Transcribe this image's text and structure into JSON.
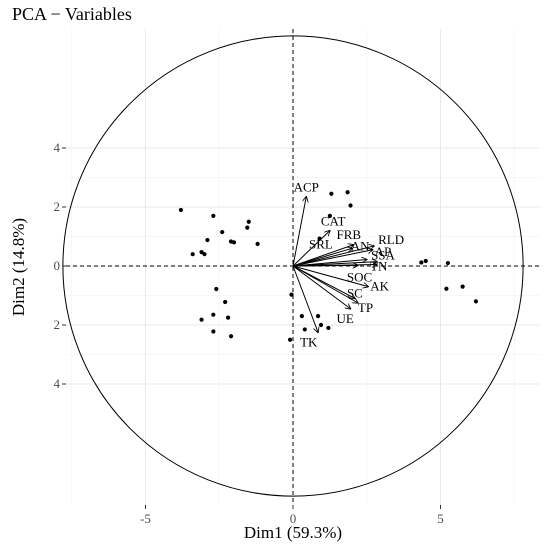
{
  "chart_data": {
    "type": "scatter",
    "title": "PCA − Variables",
    "xlabel": "Dim1 (59.3%)",
    "ylabel": "Dim2 (14.8%)",
    "xlim": [
      -7.8,
      8.2
    ],
    "ylim": [
      -4.3,
      4.3
    ],
    "xticks": [
      -5,
      0,
      5
    ],
    "yticks": [
      -4,
      -2,
      0,
      2,
      4
    ],
    "ytick_labels": [
      "4",
      "2",
      "0",
      "2",
      "4"
    ],
    "grid": true,
    "legend": "none",
    "circle": {
      "center": [
        0,
        0
      ],
      "radius": 7.8
    },
    "reference_lines": {
      "x": 0,
      "y": 0,
      "style": "dashed"
    },
    "variables": [
      {
        "name": "ACP",
        "x": 0.45,
        "y": 2.35
      },
      {
        "name": "CAT",
        "x": 1.25,
        "y": 1.2
      },
      {
        "name": "FRB",
        "x": 2.05,
        "y": 0.72
      },
      {
        "name": "RLD",
        "x": 2.75,
        "y": 0.68
      },
      {
        "name": "SRL",
        "x": 2.0,
        "y": 0.6
      },
      {
        "name": "AP",
        "x": 2.7,
        "y": 0.55
      },
      {
        "name": "AN",
        "x": 2.5,
        "y": 0.22
      },
      {
        "name": "SSA",
        "x": 2.85,
        "y": 0.15
      },
      {
        "name": "TN",
        "x": 2.85,
        "y": 0.05
      },
      {
        "name": "SOC",
        "x": 2.2,
        "y": 0.02
      },
      {
        "name": "AK",
        "x": 2.55,
        "y": -0.7
      },
      {
        "name": "SC",
        "x": 2.1,
        "y": -1.1
      },
      {
        "name": "TP",
        "x": 2.2,
        "y": -1.25
      },
      {
        "name": "UE",
        "x": 1.95,
        "y": -1.45
      },
      {
        "name": "TK",
        "x": 0.85,
        "y": -2.25
      }
    ],
    "points": [
      {
        "x": -3.8,
        "y": 1.9
      },
      {
        "x": -2.7,
        "y": 1.7
      },
      {
        "x": -1.5,
        "y": 1.5
      },
      {
        "x": -1.55,
        "y": 1.3
      },
      {
        "x": -2.4,
        "y": 1.15
      },
      {
        "x": -2.9,
        "y": 0.88
      },
      {
        "x": -2.1,
        "y": 0.83
      },
      {
        "x": -2.0,
        "y": 0.8
      },
      {
        "x": -1.2,
        "y": 0.75
      },
      {
        "x": -3.1,
        "y": 0.47
      },
      {
        "x": -3.4,
        "y": 0.4
      },
      {
        "x": -3.0,
        "y": 0.4
      },
      {
        "x": 1.85,
        "y": 2.5
      },
      {
        "x": 1.3,
        "y": 2.45
      },
      {
        "x": 1.95,
        "y": 2.05
      },
      {
        "x": 1.25,
        "y": 1.7
      },
      {
        "x": 0.9,
        "y": 0.93
      },
      {
        "x": 4.35,
        "y": 0.12
      },
      {
        "x": 4.5,
        "y": 0.17
      },
      {
        "x": 5.25,
        "y": 0.1
      },
      {
        "x": 5.2,
        "y": -0.77
      },
      {
        "x": 5.75,
        "y": -0.7
      },
      {
        "x": 6.2,
        "y": -1.2
      },
      {
        "x": -2.6,
        "y": -0.78
      },
      {
        "x": -2.3,
        "y": -1.22
      },
      {
        "x": -0.05,
        "y": -0.97
      },
      {
        "x": -2.7,
        "y": -1.65
      },
      {
        "x": -3.1,
        "y": -1.82
      },
      {
        "x": -2.2,
        "y": -1.75
      },
      {
        "x": 0.3,
        "y": -1.7
      },
      {
        "x": 0.85,
        "y": -1.7
      },
      {
        "x": 1.2,
        "y": -2.1
      },
      {
        "x": 0.95,
        "y": -2.0
      },
      {
        "x": 0.4,
        "y": -2.15
      },
      {
        "x": -2.7,
        "y": -2.22
      },
      {
        "x": -2.1,
        "y": -2.38
      },
      {
        "x": -0.1,
        "y": -2.5
      }
    ]
  }
}
